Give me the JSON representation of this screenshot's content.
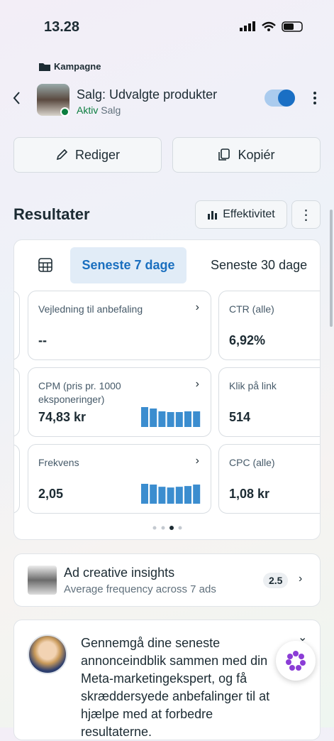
{
  "status_bar": {
    "time": "13.28"
  },
  "header": {
    "tag": "Kampagne",
    "title": "Salg: Udvalgte produkter",
    "status": "Aktiv",
    "objective": "Salg"
  },
  "actions": {
    "edit": "Rediger",
    "copy": "Kopiér"
  },
  "results": {
    "title": "Resultater",
    "view_button": "Effektivitet",
    "tabs": [
      "Seneste 7 dage",
      "Seneste 30 dage"
    ],
    "cards": [
      {
        "label": "Vejledning til anbefaling",
        "value": "--"
      },
      {
        "label": "CTR (alle)",
        "value": "6,92%"
      },
      {
        "label": "CPM (pris pr. 1000 eksponeringer)",
        "value": "74,83 kr",
        "trend": [
          28,
          26,
          22,
          21,
          21,
          22,
          22
        ]
      },
      {
        "label": "Klik på link",
        "value": "514"
      },
      {
        "label": "Frekvens",
        "value": "2,05",
        "trend": [
          27,
          26,
          23,
          22,
          23,
          24,
          26
        ]
      },
      {
        "label": "CPC (alle)",
        "value": "1,08 kr"
      }
    ]
  },
  "insights": {
    "title": "Ad creative insights",
    "subtitle": "Average frequency across 7 ads",
    "badge": "2.5"
  },
  "assistant": {
    "message": "Gennemgå dine seneste annonceindblik sammen med din Meta-marketingekspert, og få skræddersyede anbefalinger til at hjælpe med at forbedre resultaterne."
  }
}
